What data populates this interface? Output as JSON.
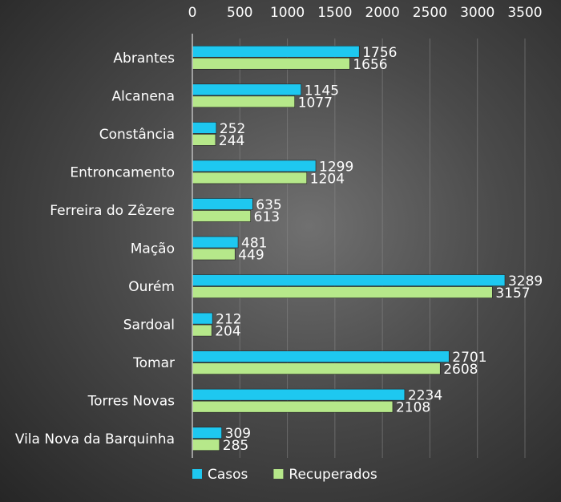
{
  "chart_data": {
    "type": "bar",
    "orientation": "horizontal",
    "title": "",
    "xlabel": "",
    "ylabel": "",
    "xlim": [
      0,
      3500
    ],
    "x_ticks": [
      0,
      500,
      1000,
      1500,
      2000,
      2500,
      3000,
      3500
    ],
    "x_axis_position": "top",
    "grid": true,
    "legend_position": "bottom-left",
    "categories": [
      "Abrantes",
      "Alcanena",
      "Constância",
      "Entroncamento",
      "Ferreira do Zêzere",
      "Mação",
      "Ourém",
      "Sardoal",
      "Tomar",
      "Torres Novas",
      "Vila Nova da Barquinha"
    ],
    "series": [
      {
        "name": "Casos",
        "color": "#1ec8f0",
        "values": [
          1756,
          1145,
          252,
          1299,
          635,
          481,
          3289,
          212,
          2701,
          2234,
          309
        ]
      },
      {
        "name": "Recuperados",
        "color": "#b6e88a",
        "values": [
          1656,
          1077,
          244,
          1204,
          613,
          449,
          3157,
          204,
          2608,
          2108,
          285
        ]
      }
    ]
  }
}
